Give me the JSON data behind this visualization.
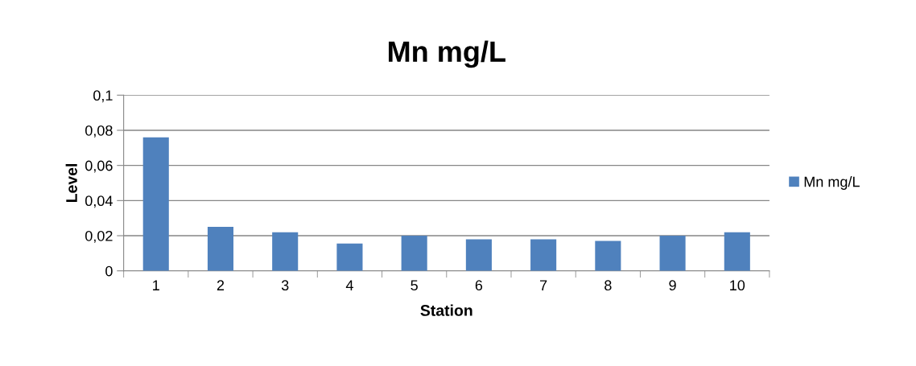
{
  "chart_data": {
    "type": "bar",
    "title": "Mn mg/L",
    "xlabel": "Station",
    "ylabel": "Level",
    "categories": [
      "1",
      "2",
      "3",
      "4",
      "5",
      "6",
      "7",
      "8",
      "9",
      "10"
    ],
    "series": [
      {
        "name": "Mn mg/L",
        "color": "#4f81bd",
        "values": [
          0.076,
          0.025,
          0.022,
          0.0155,
          0.02,
          0.018,
          0.018,
          0.017,
          0.02,
          0.022
        ]
      }
    ],
    "ylim": [
      0,
      0.1
    ],
    "yticks": [
      0,
      {
        "value": 0.02,
        "label": "0,02"
      },
      {
        "value": 0.04,
        "label": "0,04"
      },
      {
        "value": 0.06,
        "label": "0,06"
      },
      {
        "value": 0.08,
        "label": "0,08"
      },
      {
        "value": 0.1,
        "label": "0,1"
      }
    ],
    "grid": "y",
    "legend": "right"
  }
}
